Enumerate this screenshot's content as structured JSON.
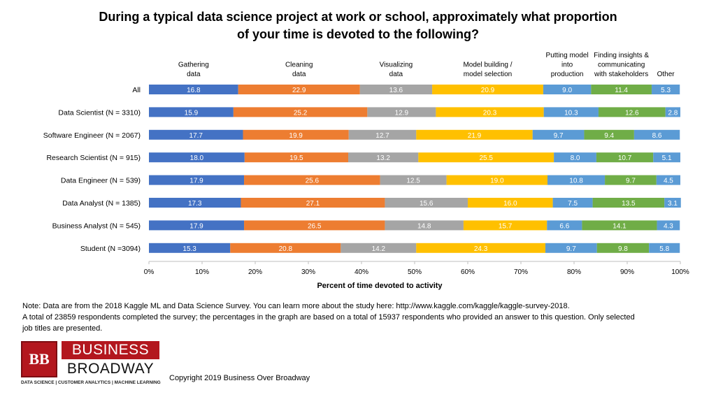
{
  "title": {
    "line1": "During a typical data science project at work or school, approximately what proportion",
    "line2": "of your time is devoted to the following?"
  },
  "chart_data": {
    "type": "bar",
    "orientation": "horizontal",
    "stacked": true,
    "categories": [
      "All",
      "Data Scientist (N = 3310)",
      "Software Engineer (N = 2067)",
      "Research Scientist (N = 915)",
      "Data Engineer (N = 539)",
      "Data Analyst (N = 1385)",
      "Business Analyst (N = 545)",
      "Student (N =3094)"
    ],
    "series": [
      {
        "name": "Gathering data",
        "header": [
          "Gathering",
          "data"
        ],
        "color": "#4472c4",
        "values": [
          16.8,
          15.9,
          17.7,
          18.0,
          17.9,
          17.3,
          17.9,
          15.3
        ]
      },
      {
        "name": "Cleaning data",
        "header": [
          "Cleaning",
          "data"
        ],
        "color": "#ed7d31",
        "values": [
          22.9,
          25.2,
          19.9,
          19.5,
          25.6,
          27.1,
          26.5,
          20.8
        ]
      },
      {
        "name": "Visualizing data",
        "header": [
          "Visualizing",
          "data"
        ],
        "color": "#a5a5a5",
        "values": [
          13.6,
          12.9,
          12.7,
          13.2,
          12.5,
          15.6,
          14.8,
          14.2
        ]
      },
      {
        "name": "Model building / model selection",
        "header": [
          "Model building /",
          "model selection"
        ],
        "color": "#ffc000",
        "values": [
          20.9,
          20.3,
          21.9,
          25.5,
          19.0,
          16.0,
          15.7,
          24.3
        ]
      },
      {
        "name": "Putting model into production",
        "header": [
          "Putting model",
          "into",
          "production"
        ],
        "color": "#5b9bd5",
        "values": [
          9.0,
          10.3,
          9.7,
          8.0,
          10.8,
          7.5,
          6.6,
          9.7
        ]
      },
      {
        "name": "Finding insights & communicating with stakeholders",
        "header": [
          "Finding insights &",
          "communicating",
          "with stakeholders"
        ],
        "color": "#70ad47",
        "values": [
          11.4,
          12.6,
          9.4,
          10.7,
          9.7,
          13.5,
          14.1,
          9.8
        ]
      },
      {
        "name": "Other",
        "header": [
          "Other"
        ],
        "color": "#5b9bd5",
        "values": [
          5.3,
          2.8,
          8.6,
          5.1,
          4.5,
          3.1,
          4.3,
          5.8
        ]
      }
    ],
    "xlim": [
      0,
      100
    ],
    "xticks": [
      "0%",
      "10%",
      "20%",
      "30%",
      "40%",
      "50%",
      "60%",
      "70%",
      "80%",
      "90%",
      "100%"
    ],
    "xlabel": "Percent of time devoted to activity",
    "ylabel": "",
    "grid": false,
    "legend": "column headers above bars"
  },
  "note": {
    "line1": "Note: Data are from the 2018 Kaggle ML and Data Science Survey.  You can learn more about the study here: http://www.kaggle.com/kaggle/kaggle-survey-2018.",
    "line2": "A total of 23859 respondents completed the survey; the percentages in the graph are based on a total of 15937 respondents who provided an answer to this question. Only selected",
    "line3": "job titles are presented."
  },
  "logo": {
    "mark": "BB",
    "line1": "BUSINESS",
    "line2": "BROADWAY",
    "tagline": "DATA SCIENCE  |  CUSTOMER ANALYTICS  |  MACHINE LEARNING"
  },
  "copyright": "Copyright 2019 Business Over Broadway"
}
